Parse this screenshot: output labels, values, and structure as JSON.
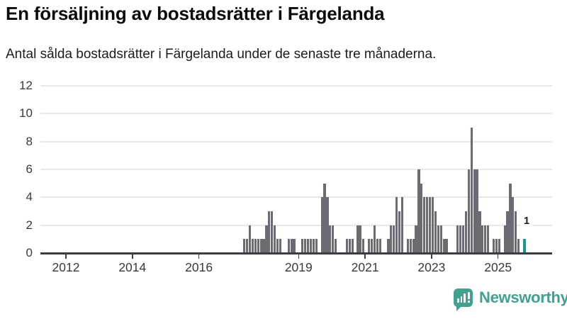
{
  "chart_data": {
    "type": "bar",
    "title": "En försäljning av bostadsrätter i Färgelanda",
    "subtitle": "Antal sålda bostadsrätter i Färgelanda under de senaste tre månaderna.",
    "xlabel": "",
    "ylabel": "",
    "ylim": [
      0,
      12
    ],
    "ytick_labels": [
      "0",
      "2",
      "4",
      "6",
      "8",
      "10",
      "12"
    ],
    "yticks": [
      0,
      2,
      4,
      6,
      8,
      10,
      12
    ],
    "xtick_labels": [
      "2012",
      "2014",
      "2016",
      "2019",
      "2021",
      "2023",
      "2025"
    ],
    "xticks": [
      2012,
      2014,
      2016,
      2019,
      2021,
      2023,
      2025
    ],
    "x_domain_years": [
      2011.23,
      2026.63
    ],
    "grid": "horizontal",
    "legend": "none",
    "series_unit": "month",
    "series_start_year": 2017,
    "series_start_month": 5,
    "values": [
      1,
      1,
      2,
      1,
      1,
      1,
      1,
      1,
      2,
      3,
      3,
      2,
      1,
      1,
      0,
      0,
      1,
      1,
      1,
      0,
      0,
      1,
      1,
      1,
      1,
      1,
      1,
      0,
      4,
      5,
      4,
      2,
      2,
      1,
      0,
      0,
      0,
      1,
      1,
      1,
      0,
      2,
      2,
      1,
      0,
      1,
      1,
      2,
      1,
      1,
      0,
      0,
      1,
      2,
      2,
      4,
      3,
      4,
      0,
      1,
      1,
      1,
      2,
      6,
      5,
      4,
      4,
      4,
      4,
      3,
      2,
      2,
      1,
      1,
      0,
      0,
      0,
      2,
      2,
      2,
      3,
      6,
      9,
      6,
      6,
      3,
      2,
      2,
      2,
      0,
      1,
      1,
      1,
      0,
      2,
      3,
      5,
      4,
      3,
      1,
      0,
      1
    ],
    "highlight_last_bar": true,
    "last_value_label": "1",
    "colors": {
      "bar": "#6b6b71",
      "highlight": "#169a8f",
      "grid": "#e8e8e8",
      "axis": "#3d3d44",
      "tick_text": "#3a3a3a"
    }
  },
  "footer": {
    "brand": "Newsworthy",
    "brand_color": "#42a090",
    "logo_icon": "speech-bubble-bar-chart-exclamation"
  }
}
